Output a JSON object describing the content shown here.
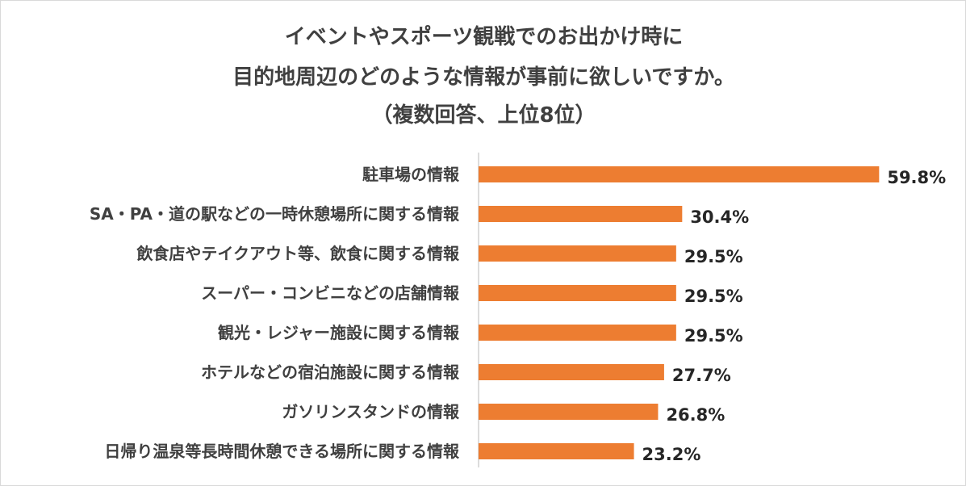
{
  "colors": {
    "bar": "#ED7D31",
    "axis": "#d0d0d0",
    "text": "#404040"
  },
  "chart_data": {
    "type": "bar",
    "orientation": "horizontal",
    "title": [
      "イベントやスポーツ観戦でのお出かけ時に",
      "目的地周辺のどのような情報が事前に欲しいですか。",
      "（複数回答、上位8位）"
    ],
    "categories": [
      "駐車場の情報",
      "SA・PA・道の駅などの一時休憩場所に関する情報",
      "飲食店やテイクアウト等、飲食に関する情報",
      "スーパー・コンビニなどの店舗情報",
      "観光・レジャー施設に関する情報",
      "ホテルなどの宿泊施設に関する情報",
      "ガソリンスタンドの情報",
      "日帰り温泉等長時間休憩できる場所に関する情報"
    ],
    "values": [
      59.8,
      30.4,
      29.5,
      29.5,
      29.5,
      27.7,
      26.8,
      23.2
    ],
    "value_labels": [
      "59.8%",
      "30.4%",
      "29.5%",
      "29.5%",
      "29.5%",
      "27.7%",
      "26.8%",
      "23.2%"
    ],
    "xlim": [
      0,
      60
    ],
    "grid": false,
    "legend": "none"
  }
}
